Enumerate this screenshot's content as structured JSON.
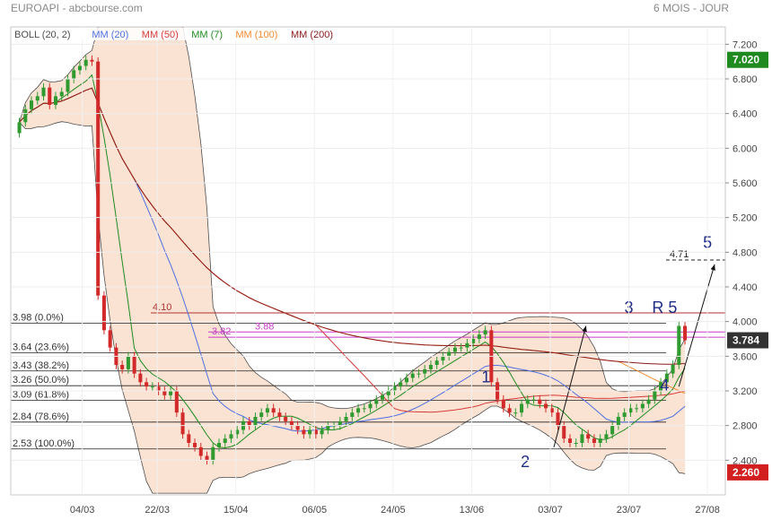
{
  "header": {
    "left": "EUROAPI - abcbourse.com",
    "right": "6 MOIS - JOUR"
  },
  "colors": {
    "up": "#2f9a2f",
    "down": "#d22a2a",
    "boll_fill": "#fbe3d4",
    "boll_line": "#4d4d4d",
    "mm20": "#4f6fe0",
    "mm50": "#d43b3b",
    "mm7": "#1f8a1f",
    "mm100": "#f08a30",
    "mm200": "#8b1a1a",
    "fib_line": "#222222",
    "magenta": "#c63cc6",
    "red_level": "#b03030",
    "annot": "#1f2d86",
    "badge_green": "#1f8a1f",
    "badge_red": "#d22020",
    "badge_dark": "#333333"
  },
  "chart_data": {
    "type": "candlestick",
    "y_axis": {
      "min": 2.0,
      "max": 7.4,
      "ticks": [
        "7.200",
        "6.800",
        "6.400",
        "6.000",
        "5.600",
        "5.200",
        "4.800",
        "4.400",
        "4.000",
        "3.600",
        "3.200",
        "2.800",
        "2.400"
      ]
    },
    "x_ticks": [
      {
        "label": "04/03",
        "t": 0.1
      },
      {
        "label": "22/03",
        "t": 0.205
      },
      {
        "label": "15/04",
        "t": 0.315
      },
      {
        "label": "06/05",
        "t": 0.425
      },
      {
        "label": "24/05",
        "t": 0.535
      },
      {
        "label": "13/06",
        "t": 0.645
      },
      {
        "label": "03/07",
        "t": 0.755
      },
      {
        "label": "23/07",
        "t": 0.865
      },
      {
        "label": "27/08",
        "t": 0.975
      }
    ],
    "legend": [
      {
        "label": "BOLL (20, 2)",
        "color": "boll_line"
      },
      {
        "label": "MM (20)",
        "color": "mm20"
      },
      {
        "label": "MM (50)",
        "color": "mm50"
      },
      {
        "label": "MM (7)",
        "color": "mm7"
      },
      {
        "label": "MM (100)",
        "color": "mm100"
      },
      {
        "label": "MM (200)",
        "color": "mm200"
      }
    ],
    "badges": [
      {
        "label": "7.020",
        "value": 7.02,
        "color": "badge_green"
      },
      {
        "label": "3.784",
        "value": 3.784,
        "color": "badge_dark"
      },
      {
        "label": "2.260",
        "value": 2.26,
        "color": "badge_red"
      }
    ],
    "closes": [
      6.3,
      6.45,
      6.55,
      6.6,
      6.7,
      6.5,
      6.6,
      6.65,
      6.8,
      6.9,
      6.95,
      7.02,
      7.0,
      4.3,
      3.9,
      3.7,
      3.5,
      3.45,
      3.6,
      3.4,
      3.3,
      3.25,
      3.25,
      3.2,
      3.15,
      3.2,
      2.95,
      2.7,
      2.6,
      2.55,
      2.45,
      2.4,
      2.55,
      2.6,
      2.65,
      2.7,
      2.75,
      2.85,
      2.8,
      2.9,
      2.95,
      3.0,
      2.95,
      2.9,
      2.85,
      2.8,
      2.75,
      2.7,
      2.75,
      2.7,
      2.75,
      2.8,
      2.8,
      2.85,
      2.9,
      2.95,
      3.0,
      3.0,
      3.05,
      3.1,
      3.15,
      3.2,
      3.25,
      3.3,
      3.35,
      3.4,
      3.4,
      3.45,
      3.5,
      3.55,
      3.6,
      3.65,
      3.7,
      3.7,
      3.75,
      3.8,
      3.85,
      3.9,
      3.3,
      3.1,
      3.0,
      2.95,
      2.95,
      3.05,
      3.1,
      3.1,
      3.05,
      3.0,
      2.95,
      2.8,
      2.65,
      2.6,
      2.6,
      2.7,
      2.65,
      2.6,
      2.65,
      2.7,
      2.8,
      2.9,
      2.95,
      3.0,
      3.0,
      3.05,
      3.1,
      3.2,
      3.3,
      3.4,
      3.5,
      3.95,
      3.784
    ],
    "fib_levels": [
      {
        "label": "3.98 (0.0%)",
        "value": 3.98
      },
      {
        "label": "3.64 (23.6%)",
        "value": 3.64
      },
      {
        "label": "3.43 (38.2%)",
        "value": 3.43
      },
      {
        "label": "3.26 (50.0%)",
        "value": 3.26
      },
      {
        "label": "3.09 (61.8%)",
        "value": 3.09
      },
      {
        "label": "2.84 (78.6%)",
        "value": 2.84
      },
      {
        "label": "2.53 (100.0%)",
        "value": 2.53
      }
    ],
    "levels": [
      {
        "label": "4.10",
        "value": 4.1,
        "color": "red_level"
      },
      {
        "label": "3.82",
        "value": 3.82,
        "color": "magenta"
      },
      {
        "label": "3.88",
        "value": 3.88,
        "color": "magenta"
      },
      {
        "label": "4.71",
        "value": 4.71,
        "color": "fib_line"
      }
    ],
    "annotations": [
      {
        "label": "1",
        "t": 0.665,
        "v": 3.3
      },
      {
        "label": "2",
        "t": 0.72,
        "v": 2.32
      },
      {
        "label": "3",
        "t": 0.865,
        "v": 4.1
      },
      {
        "label": "R 5",
        "t": 0.915,
        "v": 4.1
      },
      {
        "label": "4",
        "t": 0.915,
        "v": 3.2
      },
      {
        "label": "5",
        "t": 0.975,
        "v": 4.85
      }
    ]
  }
}
